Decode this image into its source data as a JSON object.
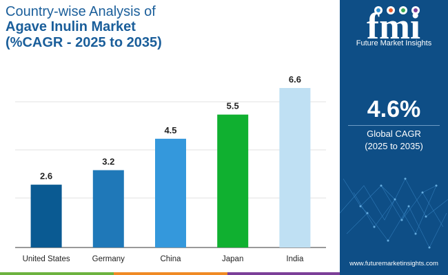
{
  "title": {
    "line1": "Country-wise Analysis of",
    "line2": "Agave Inulin Market",
    "line3": "(%CAGR - 2025 to 2035)"
  },
  "chart_data": {
    "type": "bar",
    "categories": [
      "United States",
      "Germany",
      "China",
      "Japan",
      "India"
    ],
    "values": [
      2.6,
      3.2,
      4.5,
      5.5,
      6.6
    ],
    "value_labels": [
      "2.6",
      "3.2",
      "4.5",
      "5.5",
      "6.6"
    ],
    "ylim": [
      0,
      6.6
    ],
    "grid": true,
    "bar_colors": [
      "#0a5a92",
      "#1f78b8",
      "#3498dc",
      "#10b030",
      "#bfe0f3"
    ]
  },
  "side_panel": {
    "brand": "Future Market Insights",
    "cagr_value": "4.6%",
    "cagr_label": "Global CAGR",
    "cagr_period": "(2025 to 2035)",
    "website": "www.futuremarketinsights.com",
    "logo_text": "fmi"
  },
  "colors": {
    "title": "#1a5e9a",
    "panel_bg": "#0e4e86",
    "footer": [
      "#6cb33e",
      "#f08a24",
      "#7b3f98"
    ]
  }
}
